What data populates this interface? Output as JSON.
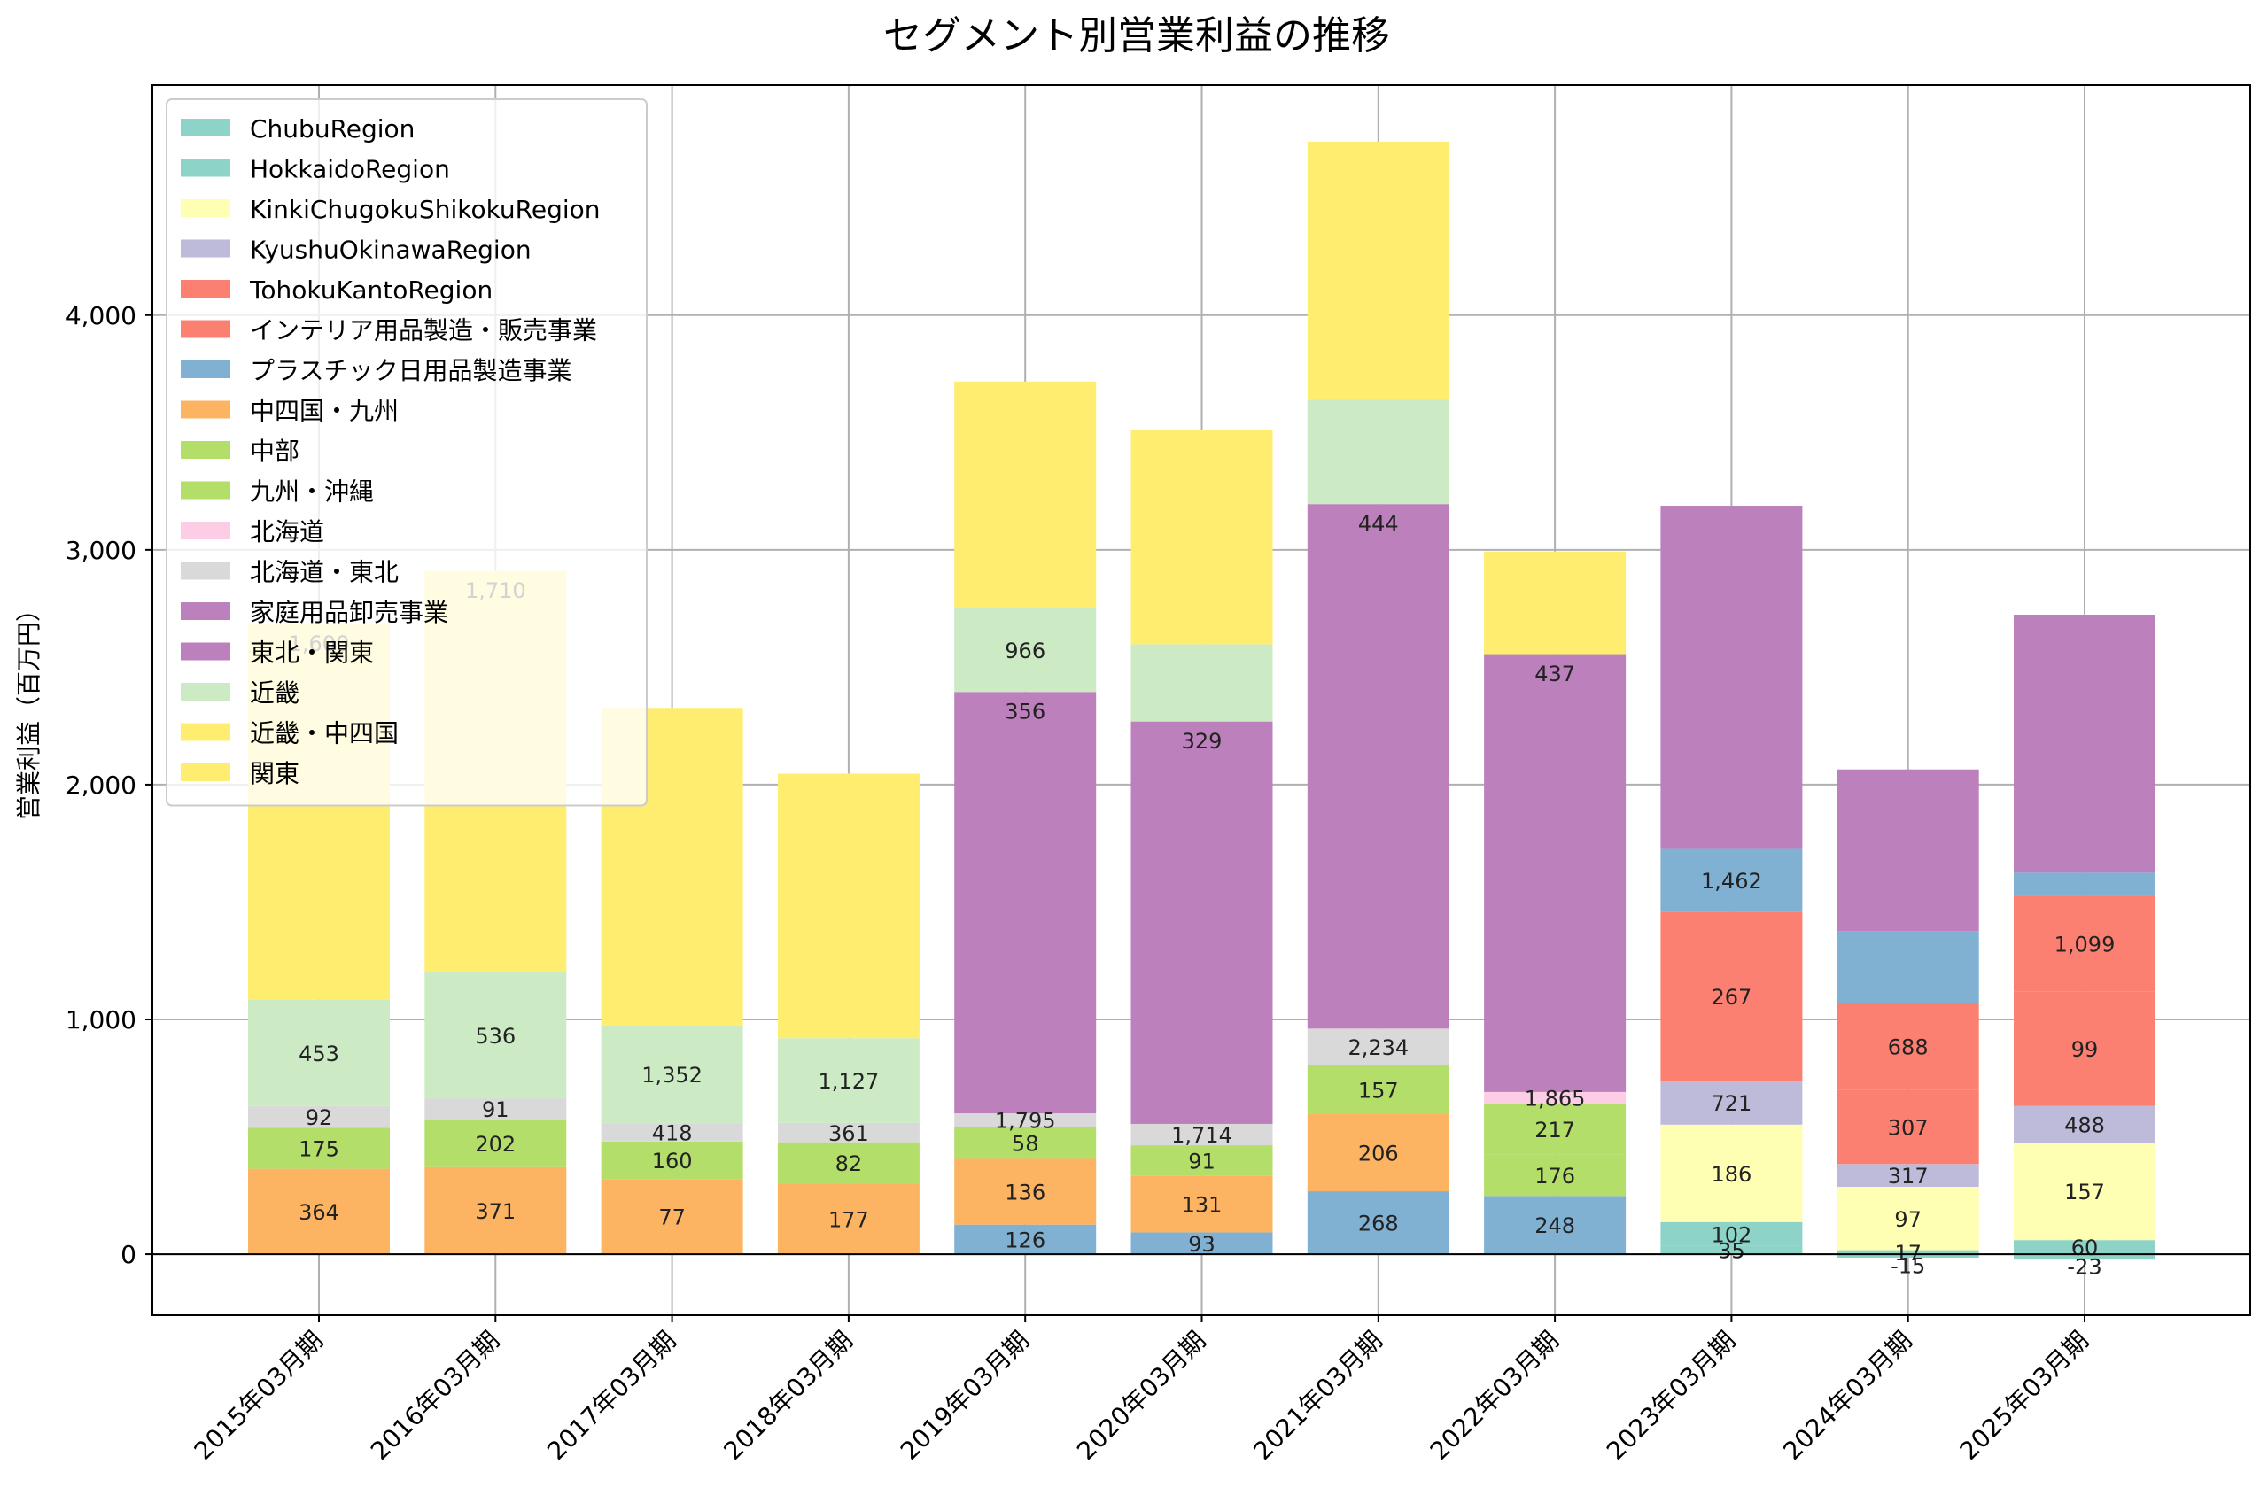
{
  "chart_data": {
    "type": "bar",
    "stacked": true,
    "title": "セグメント別営業利益の推移",
    "xlabel": "",
    "ylabel": "営業利益（百万円）",
    "ylim": [
      -260,
      4980
    ],
    "yticks": [
      0,
      1000,
      2000,
      3000,
      4000
    ],
    "ytick_labels": [
      "0",
      "1,000",
      "2,000",
      "3,000",
      "4,000"
    ],
    "grid": true,
    "legend_position": "top-left",
    "categories": [
      "2015年03月期",
      "2016年03月期",
      "2017年03月期",
      "2018年03月期",
      "2019年03月期",
      "2020年03月期",
      "2021年03月期",
      "2022年03月期",
      "2023年03月期",
      "2024年03月期",
      "2025年03月期"
    ],
    "series": [
      {
        "name": "ChubuRegion",
        "color": "#8dd3c7",
        "values": [
          null,
          null,
          null,
          null,
          null,
          null,
          null,
          null,
          35,
          -15,
          -23
        ]
      },
      {
        "name": "HokkaidoRegion",
        "color": "#8dd3c7",
        "values": [
          null,
          null,
          null,
          null,
          null,
          null,
          null,
          null,
          102,
          17,
          60
        ]
      },
      {
        "name": "KinkiChugokuShikokuRegion",
        "color": "#ffffb3",
        "values": [
          null,
          null,
          null,
          null,
          null,
          null,
          null,
          null,
          415,
          270,
          415
        ]
      },
      {
        "name": "KyushuOkinawaRegion",
        "color": "#bebada",
        "values": [
          null,
          null,
          null,
          null,
          null,
          null,
          null,
          null,
          186,
          97,
          157
        ]
      },
      {
        "name": "TohokuKantoRegion",
        "color": "#fb8072",
        "values": [
          null,
          null,
          null,
          null,
          null,
          null,
          null,
          null,
          721,
          317,
          488
        ]
      },
      {
        "name": "インテリア用品製造・販売事業",
        "color": "#fb8072",
        "values": [
          null,
          null,
          null,
          null,
          null,
          null,
          null,
          null,
          null,
          369,
          406
        ]
      },
      {
        "name": "プラスチック日用品製造事業",
        "color": "#80b1d3",
        "values": [
          null,
          null,
          null,
          null,
          126,
          93,
          268,
          248,
          267,
          307,
          99
        ]
      },
      {
        "name": "中四国・九州",
        "color": "#fdb462",
        "values": [
          364,
          371,
          320,
          300,
          280,
          240,
          330,
          null,
          null,
          null,
          null
        ]
      },
      {
        "name": "中部",
        "color": "#b3de69",
        "values": [
          175,
          202,
          160,
          177,
          136,
          131,
          206,
          176,
          null,
          null,
          null
        ]
      },
      {
        "name": "九州・沖縄",
        "color": "#b3de69",
        "values": [
          null,
          null,
          null,
          null,
          null,
          null,
          null,
          217,
          null,
          null,
          null
        ]
      },
      {
        "name": "北海道",
        "color": "#fccde5",
        "values": [
          null,
          null,
          null,
          null,
          null,
          null,
          null,
          50,
          null,
          null,
          null
        ]
      },
      {
        "name": "北海道・東北",
        "color": "#d9d9d9",
        "values": [
          92,
          91,
          77,
          82,
          58,
          91,
          157,
          null,
          null,
          null,
          null
        ]
      },
      {
        "name": "家庭用品卸売事業",
        "color": "#bc80bd",
        "values": [
          null,
          null,
          null,
          null,
          1795,
          1714,
          2234,
          1865,
          1462,
          688,
          1099
        ]
      },
      {
        "name": "東北・関東",
        "color": "#bc80bd",
        "values": [
          null,
          null,
          null,
          null,
          null,
          null,
          null,
          null,
          null,
          null,
          null
        ]
      },
      {
        "name": "近畿",
        "color": "#ccebc5",
        "values": [
          453,
          536,
          418,
          361,
          356,
          329,
          444,
          null,
          null,
          null,
          null
        ]
      },
      {
        "name": "近畿・中四国",
        "color": "#ffed6f",
        "values": [
          null,
          null,
          null,
          null,
          null,
          null,
          null,
          437,
          null,
          null,
          null
        ]
      },
      {
        "name": "関東",
        "color": "#ffed6f",
        "values": [
          1600,
          1710,
          1352,
          1127,
          966,
          914,
          1100,
          null,
          null,
          null,
          null
        ]
      }
    ],
    "data_labels": [
      [
        "364",
        "175",
        "92",
        "453",
        "1,600"
      ],
      [
        "371",
        "202",
        "91",
        "536",
        "1,710"
      ],
      [
        "77",
        "160",
        "418",
        "1,352"
      ],
      [
        "177",
        "82",
        "361",
        "1,127"
      ],
      [
        "126",
        "136",
        "58",
        "1,795",
        "356",
        "966"
      ],
      [
        "93",
        "131",
        "91",
        "1,714",
        "329"
      ],
      [
        "268",
        "206",
        "157",
        "2,234",
        "444"
      ],
      [
        "248",
        "176",
        "217",
        "1,865",
        "437"
      ],
      [
        "35",
        "102",
        "186",
        "721",
        "267",
        "1,462"
      ],
      [
        "-15",
        "17",
        "97",
        "317",
        "307",
        "688"
      ],
      [
        "-23",
        "60",
        "157",
        "488",
        "99",
        "1,099"
      ]
    ]
  }
}
